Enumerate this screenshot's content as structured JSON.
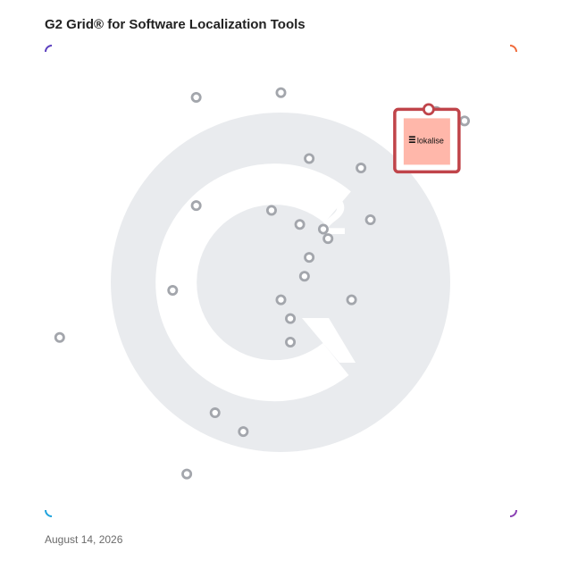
{
  "header": {
    "title": "G2 Grid® for Software Localization Tools"
  },
  "footer": {
    "date": "August 14, 2026"
  },
  "colors": {
    "border_top_left": "#5b3fbf",
    "border_top_right": "#f06a3a",
    "border_bottom_left": "#1fa3dd",
    "border_bottom_right": "#8a3fb3",
    "watermark": "#e9ebee",
    "dot": "#a3a6ac",
    "highlight_border": "#c0444a",
    "highlight_fill": "#ffb7aa"
  },
  "logo": {
    "text": "lokalise",
    "icon": "lokalise-logo-icon"
  },
  "chart_data": {
    "type": "scatter",
    "title": "G2 Grid® for Software Localization Tools",
    "xlabel": "",
    "ylabel": "",
    "xlim": [
      0,
      100
    ],
    "ylim": [
      0,
      100
    ],
    "grid": "quadrants",
    "quadrant_dividers": {
      "x": 50,
      "y": 50
    },
    "points": [
      {
        "x": 32,
        "y": 89
      },
      {
        "x": 50,
        "y": 90
      },
      {
        "x": 83,
        "y": 86
      },
      {
        "x": 89,
        "y": 84
      },
      {
        "x": 56,
        "y": 76
      },
      {
        "x": 67,
        "y": 74
      },
      {
        "x": 32,
        "y": 66
      },
      {
        "x": 48,
        "y": 65
      },
      {
        "x": 54,
        "y": 62
      },
      {
        "x": 59,
        "y": 61
      },
      {
        "x": 60,
        "y": 59
      },
      {
        "x": 69,
        "y": 63
      },
      {
        "x": 56,
        "y": 55
      },
      {
        "x": 55,
        "y": 51
      },
      {
        "x": 27,
        "y": 48
      },
      {
        "x": 50,
        "y": 46
      },
      {
        "x": 65,
        "y": 46
      },
      {
        "x": 52,
        "y": 42
      },
      {
        "x": 52,
        "y": 37
      },
      {
        "x": 3,
        "y": 38
      },
      {
        "x": 36,
        "y": 22
      },
      {
        "x": 42,
        "y": 18
      },
      {
        "x": 30,
        "y": 9
      }
    ],
    "highlight": {
      "name": "lokalise",
      "x": 81,
      "y": 80
    }
  }
}
